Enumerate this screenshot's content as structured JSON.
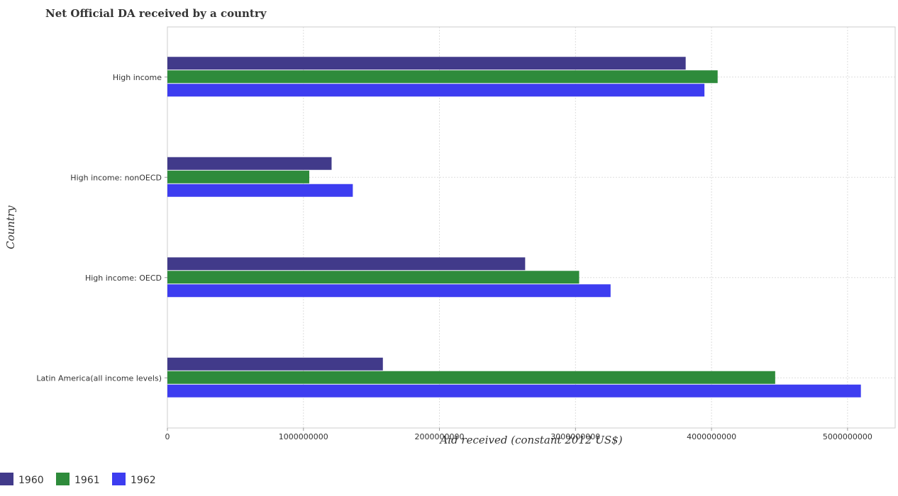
{
  "chart_data": {
    "type": "bar",
    "orientation": "horizontal",
    "title": "Net Official DA received by a country",
    "xlabel": "Aid received (constant 2012 US$)",
    "ylabel": "Country",
    "categories": [
      "High income",
      "High income: nonOECD",
      "High income: OECD",
      "Latin America(all income levels)"
    ],
    "series": [
      {
        "name": "1960",
        "color": "#413a8a",
        "values": [
          3810000000,
          1207000000,
          2630000000,
          1584000000
        ]
      },
      {
        "name": "1961",
        "color": "#2e8b3b",
        "values": [
          4045000000,
          1043000000,
          3027000000,
          4468000000
        ]
      },
      {
        "name": "1962",
        "color": "#3d3df0",
        "values": [
          3948000000,
          1363000000,
          3258000000,
          5098000000
        ]
      }
    ],
    "xlim": [
      0,
      5350000000
    ],
    "xticks": [
      0,
      1000000000,
      2000000000,
      3000000000,
      4000000000,
      5000000000
    ],
    "xtick_labels": [
      "0",
      "1000000000",
      "2000000000",
      "3000000000",
      "4000000000",
      "5000000000"
    ],
    "grid": true,
    "legend_position": "bottom-left"
  }
}
